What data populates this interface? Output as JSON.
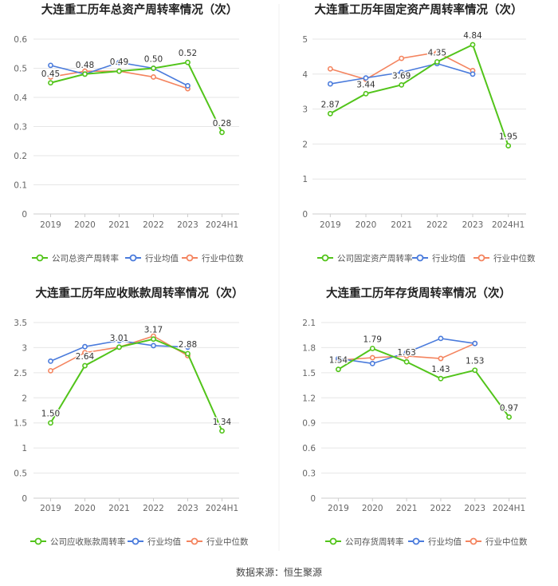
{
  "source": "数据来源：恒生聚源",
  "colors": {
    "company": "#52c41a",
    "avg": "#4a7bdc",
    "median": "#f4845f",
    "grid": "#e6e6e6",
    "axis": "#666666",
    "title": "#222222"
  },
  "chart_data": [
    {
      "type": "line",
      "title": "大连重工历年总资产周转率情况（次）",
      "categories": [
        "2019",
        "2020",
        "2021",
        "2022",
        "2023",
        "2024H1"
      ],
      "ylim": [
        0,
        0.6
      ],
      "yticks": [
        0,
        0.1,
        0.2,
        0.3,
        0.4,
        0.5,
        0.6
      ],
      "ytick_labels": [
        "0",
        "0.1",
        "0.2",
        "0.3",
        "0.4",
        "0.5",
        "0.6"
      ],
      "series": [
        {
          "name": "公司总资产周转率",
          "key": "company",
          "values": [
            0.45,
            0.48,
            0.49,
            0.5,
            0.52,
            0.28
          ],
          "labels": [
            "0.45",
            "0.48",
            "0.49",
            "0.50",
            "0.52",
            "0.28"
          ]
        },
        {
          "name": "行业均值",
          "key": "avg",
          "values": [
            0.51,
            0.48,
            0.52,
            0.5,
            0.44,
            null
          ]
        },
        {
          "name": "行业中位数",
          "key": "median",
          "values": [
            0.47,
            0.49,
            0.49,
            0.47,
            0.43,
            null
          ]
        }
      ]
    },
    {
      "type": "line",
      "title": "大连重工历年固定资产周转率情况（次）",
      "categories": [
        "2019",
        "2020",
        "2021",
        "2022",
        "2023",
        "2024H1"
      ],
      "ylim": [
        0,
        5
      ],
      "yticks": [
        0,
        1,
        2,
        3,
        4,
        5
      ],
      "ytick_labels": [
        "0",
        "1",
        "2",
        "3",
        "4",
        "5"
      ],
      "series": [
        {
          "name": "公司固定资产周转率",
          "key": "company",
          "values": [
            2.87,
            3.44,
            3.69,
            4.35,
            4.84,
            1.95
          ],
          "labels": [
            "2.87",
            "3.44",
            "3.69",
            "4.35",
            "4.84",
            "1.95"
          ]
        },
        {
          "name": "行业均值",
          "key": "avg",
          "values": [
            3.72,
            3.89,
            4.05,
            4.3,
            4.0,
            null
          ]
        },
        {
          "name": "行业中位数",
          "key": "median",
          "values": [
            4.15,
            3.85,
            4.45,
            4.62,
            4.1,
            null
          ]
        }
      ]
    },
    {
      "type": "line",
      "title": "大连重工历年应收账款周转率情况（次）",
      "categories": [
        "2019",
        "2020",
        "2021",
        "2022",
        "2023",
        "2024H1"
      ],
      "ylim": [
        0,
        3.5
      ],
      "yticks": [
        0,
        0.5,
        1,
        1.5,
        2,
        2.5,
        3,
        3.5
      ],
      "ytick_labels": [
        "0",
        "0.5",
        "1",
        "1.5",
        "2",
        "2.5",
        "3",
        "3.5"
      ],
      "series": [
        {
          "name": "公司应收账款周转率",
          "key": "company",
          "values": [
            1.5,
            2.64,
            3.01,
            3.17,
            2.88,
            1.34
          ],
          "labels": [
            "1.50",
            "2.64",
            "3.01",
            "3.17",
            "2.88",
            "1.34"
          ]
        },
        {
          "name": "行业均值",
          "key": "avg",
          "values": [
            2.73,
            3.02,
            3.14,
            3.04,
            3.01,
            null
          ]
        },
        {
          "name": "行业中位数",
          "key": "median",
          "values": [
            2.54,
            2.9,
            3.01,
            3.23,
            2.84,
            null
          ]
        }
      ]
    },
    {
      "type": "line",
      "title": "大连重工历年存货周转率情况（次）",
      "categories": [
        "2019",
        "2020",
        "2021",
        "2022",
        "2023",
        "2024H1"
      ],
      "ylim": [
        0,
        2.1
      ],
      "yticks": [
        0,
        0.3,
        0.6,
        0.9,
        1.2,
        1.5,
        1.8,
        2.1
      ],
      "ytick_labels": [
        "0",
        "0.3",
        "0.6",
        "0.9",
        "1.2",
        "1.5",
        "1.8",
        "2.1"
      ],
      "series": [
        {
          "name": "公司存货周转率",
          "key": "company",
          "values": [
            1.54,
            1.79,
            1.63,
            1.43,
            1.53,
            0.97
          ],
          "labels": [
            "1.54",
            "1.79",
            "1.63",
            "1.43",
            "1.53",
            "0.97"
          ]
        },
        {
          "name": "行业均值",
          "key": "avg",
          "values": [
            1.67,
            1.61,
            1.74,
            1.91,
            1.85,
            null
          ]
        },
        {
          "name": "行业中位数",
          "key": "median",
          "values": [
            1.65,
            1.68,
            1.7,
            1.67,
            1.85,
            null
          ]
        }
      ]
    }
  ]
}
